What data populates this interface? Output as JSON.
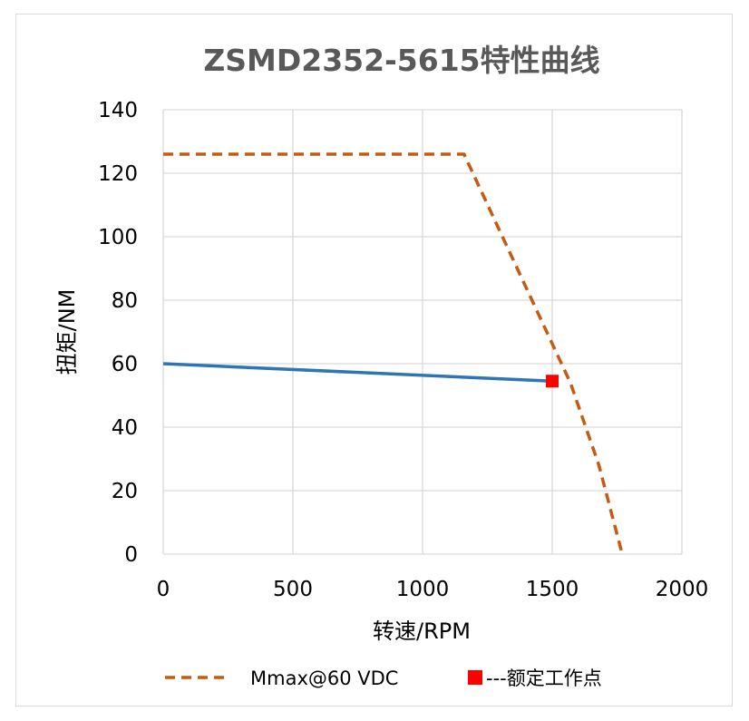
{
  "chart_data": {
    "type": "line",
    "title": "ZSMD2352-5615特性曲线",
    "xlabel": "转速/RPM",
    "ylabel": "扭矩/NM",
    "xlim": [
      0,
      2000
    ],
    "ylim": [
      0,
      140
    ],
    "x_ticks": [
      "0",
      "500",
      "1000",
      "1500",
      "2000"
    ],
    "y_ticks": [
      "0",
      "20",
      "40",
      "60",
      "80",
      "100",
      "120",
      "140"
    ],
    "grid": true,
    "legend_position": "bottom",
    "series": [
      {
        "name": "Mmax@60 VDC",
        "style": "dashed",
        "color": "#c55a11",
        "x": [
          0,
          1160,
          1570,
          1680,
          1770
        ],
        "y": [
          126,
          126,
          54,
          28,
          0
        ]
      },
      {
        "name": "",
        "style": "solid",
        "color": "#2e75b6",
        "x": [
          0,
          1500
        ],
        "y": [
          60,
          54.5
        ]
      },
      {
        "name": "---额定工作点",
        "style": "marker",
        "color": "#ff0000",
        "x": [
          1500
        ],
        "y": [
          54.5
        ]
      }
    ]
  }
}
